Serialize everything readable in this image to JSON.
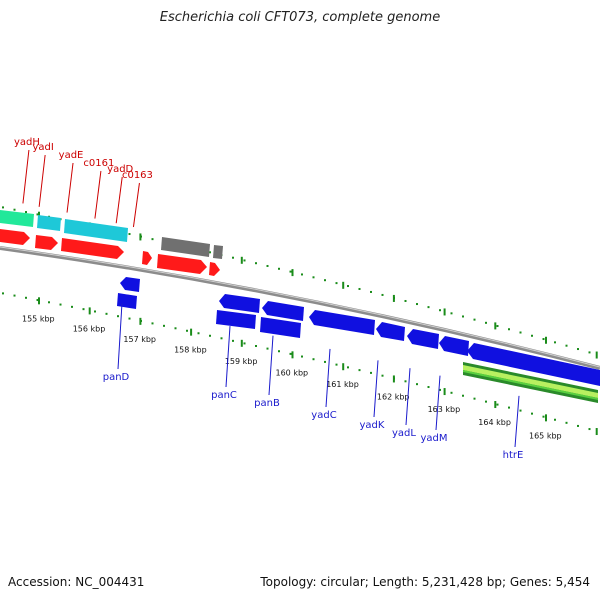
{
  "title": "Escherichia coli CFT073, complete genome",
  "footer": {
    "accession": "Accession: NC_004431",
    "summary": "Topology: circular; Length: 5,231,428 bp; Genes: 5,454"
  },
  "colors": {
    "forward_cds": "#ff1a1a",
    "reverse_cds": "#1010e0",
    "rna_cyan": "#1ec8d8",
    "rna_green": "#22e89a",
    "other_grey": "#707070",
    "backbone": "#8c8c8c",
    "tick_green": "#1a8c1a",
    "label_red": "#cc0000",
    "label_blue": "#1a1acc",
    "band_green_dark": "#2a8a2a",
    "band_green_light": "#b8f060"
  },
  "kbp_labels": [
    "155 kbp",
    "156 kbp",
    "157 kbp",
    "158 kbp",
    "159 kbp",
    "160 kbp",
    "161 kbp",
    "162 kbp",
    "163 kbp",
    "164 kbp",
    "165 kbp"
  ],
  "top_labels": [
    {
      "name": "yadH",
      "kb": 154.88
    },
    {
      "name": "yadI",
      "kb": 155.2
    },
    {
      "name": "yadE",
      "kb": 155.75
    },
    {
      "name": "c0161",
      "kb": 156.3
    },
    {
      "name": "yadD",
      "kb": 156.72
    },
    {
      "name": "c0163",
      "kb": 157.06
    }
  ],
  "bottom_labels": [
    {
      "name": "panD",
      "kb": 156.58
    },
    {
      "name": "panC",
      "kb": 158.52
    },
    {
      "name": "panB",
      "kb": 158.95
    },
    {
      "name": "yadC",
      "kb": 160.18
    },
    {
      "name": "yadK",
      "kb": 161.1
    },
    {
      "name": "yadL",
      "kb": 161.55
    },
    {
      "name": "yadM",
      "kb": 161.93
    },
    {
      "name": "htrE",
      "kb": 162.65
    }
  ]
}
